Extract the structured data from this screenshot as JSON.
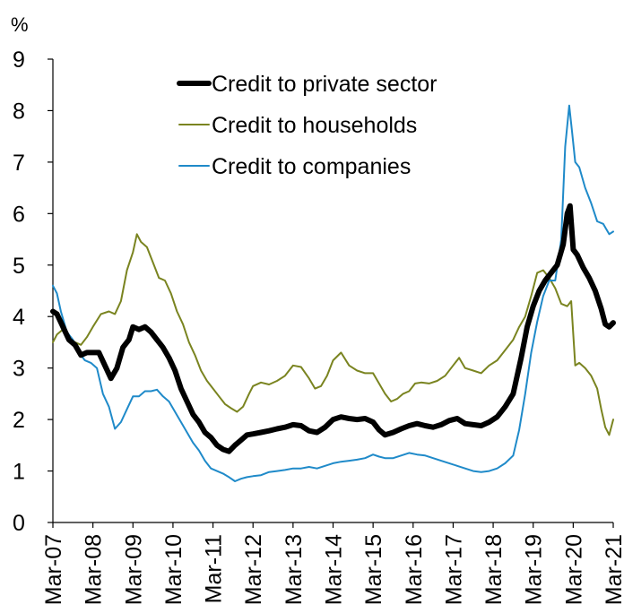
{
  "chart_data": {
    "type": "line",
    "ylabel": "%",
    "ylim": [
      0,
      9
    ],
    "yticks": [
      "0",
      "1",
      "2",
      "3",
      "4",
      "5",
      "6",
      "7",
      "8",
      "9"
    ],
    "xlim": [
      2007.0,
      2021.0
    ],
    "xticks": [
      {
        "label": "Mar-07",
        "x": 2007.0
      },
      {
        "label": "Mar-08",
        "x": 2008.0
      },
      {
        "label": "Mar-09",
        "x": 2009.0
      },
      {
        "label": "Mar-10",
        "x": 2010.0
      },
      {
        "label": "Mar-11",
        "x": 2011.0
      },
      {
        "label": "Mar-12",
        "x": 2012.0
      },
      {
        "label": "Mar-13",
        "x": 2013.0
      },
      {
        "label": "Mar-14",
        "x": 2014.0
      },
      {
        "label": "Mar-15",
        "x": 2015.0
      },
      {
        "label": "Mar-16",
        "x": 2016.0
      },
      {
        "label": "Mar-17",
        "x": 2017.0
      },
      {
        "label": "Mar-18",
        "x": 2018.0
      },
      {
        "label": "Mar-19",
        "x": 2019.0
      },
      {
        "label": "Mar-20",
        "x": 2020.0
      },
      {
        "label": "Mar-21",
        "x": 2021.0
      }
    ],
    "grid": false,
    "legend_position": "top-center",
    "series": [
      {
        "name": "Credit to private sector",
        "color": "#000000",
        "style": "thick",
        "points": [
          [
            2007.0,
            4.1
          ],
          [
            2007.1,
            4.05
          ],
          [
            2007.25,
            3.8
          ],
          [
            2007.4,
            3.55
          ],
          [
            2007.55,
            3.45
          ],
          [
            2007.7,
            3.25
          ],
          [
            2007.85,
            3.3
          ],
          [
            2008.0,
            3.3
          ],
          [
            2008.15,
            3.3
          ],
          [
            2008.3,
            3.05
          ],
          [
            2008.45,
            2.8
          ],
          [
            2008.6,
            3.0
          ],
          [
            2008.75,
            3.4
          ],
          [
            2008.9,
            3.55
          ],
          [
            2009.0,
            3.8
          ],
          [
            2009.15,
            3.75
          ],
          [
            2009.3,
            3.8
          ],
          [
            2009.45,
            3.7
          ],
          [
            2009.6,
            3.55
          ],
          [
            2009.75,
            3.4
          ],
          [
            2009.9,
            3.2
          ],
          [
            2010.05,
            2.95
          ],
          [
            2010.2,
            2.6
          ],
          [
            2010.35,
            2.35
          ],
          [
            2010.5,
            2.1
          ],
          [
            2010.65,
            1.95
          ],
          [
            2010.8,
            1.75
          ],
          [
            2010.95,
            1.65
          ],
          [
            2011.1,
            1.5
          ],
          [
            2011.25,
            1.42
          ],
          [
            2011.4,
            1.38
          ],
          [
            2011.55,
            1.5
          ],
          [
            2011.7,
            1.6
          ],
          [
            2011.85,
            1.7
          ],
          [
            2012.0,
            1.72
          ],
          [
            2012.2,
            1.75
          ],
          [
            2012.4,
            1.78
          ],
          [
            2012.6,
            1.82
          ],
          [
            2012.8,
            1.85
          ],
          [
            2013.0,
            1.9
          ],
          [
            2013.2,
            1.88
          ],
          [
            2013.4,
            1.78
          ],
          [
            2013.6,
            1.75
          ],
          [
            2013.8,
            1.85
          ],
          [
            2014.0,
            2.0
          ],
          [
            2014.2,
            2.05
          ],
          [
            2014.4,
            2.02
          ],
          [
            2014.6,
            2.0
          ],
          [
            2014.8,
            2.02
          ],
          [
            2015.0,
            1.95
          ],
          [
            2015.15,
            1.8
          ],
          [
            2015.3,
            1.7
          ],
          [
            2015.5,
            1.75
          ],
          [
            2015.7,
            1.82
          ],
          [
            2015.9,
            1.88
          ],
          [
            2016.1,
            1.92
          ],
          [
            2016.3,
            1.88
          ],
          [
            2016.5,
            1.85
          ],
          [
            2016.7,
            1.9
          ],
          [
            2016.9,
            1.98
          ],
          [
            2017.1,
            2.02
          ],
          [
            2017.3,
            1.92
          ],
          [
            2017.5,
            1.9
          ],
          [
            2017.7,
            1.88
          ],
          [
            2017.9,
            1.95
          ],
          [
            2018.1,
            2.05
          ],
          [
            2018.3,
            2.25
          ],
          [
            2018.5,
            2.5
          ],
          [
            2018.7,
            3.2
          ],
          [
            2018.85,
            3.8
          ],
          [
            2019.0,
            4.2
          ],
          [
            2019.15,
            4.5
          ],
          [
            2019.3,
            4.7
          ],
          [
            2019.45,
            4.85
          ],
          [
            2019.6,
            5.0
          ],
          [
            2019.75,
            5.4
          ],
          [
            2019.85,
            6.0
          ],
          [
            2019.92,
            6.15
          ],
          [
            2020.0,
            5.3
          ],
          [
            2020.1,
            5.2
          ],
          [
            2020.25,
            4.95
          ],
          [
            2020.4,
            4.75
          ],
          [
            2020.55,
            4.5
          ],
          [
            2020.7,
            4.15
          ],
          [
            2020.8,
            3.85
          ],
          [
            2020.9,
            3.8
          ],
          [
            2021.0,
            3.88
          ]
        ]
      },
      {
        "name": "Credit to households",
        "color": "#7a8420",
        "style": "thin",
        "points": [
          [
            2007.0,
            3.5
          ],
          [
            2007.1,
            3.65
          ],
          [
            2007.25,
            3.75
          ],
          [
            2007.4,
            3.6
          ],
          [
            2007.55,
            3.5
          ],
          [
            2007.7,
            3.45
          ],
          [
            2007.85,
            3.6
          ],
          [
            2008.0,
            3.8
          ],
          [
            2008.2,
            4.05
          ],
          [
            2008.4,
            4.1
          ],
          [
            2008.55,
            4.05
          ],
          [
            2008.7,
            4.3
          ],
          [
            2008.85,
            4.9
          ],
          [
            2009.0,
            5.25
          ],
          [
            2009.1,
            5.6
          ],
          [
            2009.2,
            5.45
          ],
          [
            2009.35,
            5.35
          ],
          [
            2009.5,
            5.05
          ],
          [
            2009.65,
            4.75
          ],
          [
            2009.8,
            4.7
          ],
          [
            2009.95,
            4.45
          ],
          [
            2010.1,
            4.1
          ],
          [
            2010.25,
            3.85
          ],
          [
            2010.4,
            3.5
          ],
          [
            2010.55,
            3.25
          ],
          [
            2010.7,
            2.95
          ],
          [
            2010.85,
            2.75
          ],
          [
            2011.0,
            2.6
          ],
          [
            2011.15,
            2.45
          ],
          [
            2011.3,
            2.3
          ],
          [
            2011.45,
            2.22
          ],
          [
            2011.6,
            2.15
          ],
          [
            2011.75,
            2.25
          ],
          [
            2011.9,
            2.5
          ],
          [
            2012.0,
            2.65
          ],
          [
            2012.2,
            2.72
          ],
          [
            2012.4,
            2.68
          ],
          [
            2012.6,
            2.75
          ],
          [
            2012.8,
            2.85
          ],
          [
            2013.0,
            3.05
          ],
          [
            2013.2,
            3.02
          ],
          [
            2013.4,
            2.8
          ],
          [
            2013.55,
            2.6
          ],
          [
            2013.7,
            2.65
          ],
          [
            2013.85,
            2.85
          ],
          [
            2014.0,
            3.15
          ],
          [
            2014.2,
            3.3
          ],
          [
            2014.4,
            3.05
          ],
          [
            2014.6,
            2.95
          ],
          [
            2014.8,
            2.9
          ],
          [
            2015.0,
            2.9
          ],
          [
            2015.15,
            2.7
          ],
          [
            2015.3,
            2.5
          ],
          [
            2015.45,
            2.35
          ],
          [
            2015.6,
            2.4
          ],
          [
            2015.75,
            2.5
          ],
          [
            2015.9,
            2.55
          ],
          [
            2016.05,
            2.7
          ],
          [
            2016.2,
            2.72
          ],
          [
            2016.4,
            2.7
          ],
          [
            2016.6,
            2.75
          ],
          [
            2016.8,
            2.85
          ],
          [
            2017.0,
            3.05
          ],
          [
            2017.15,
            3.2
          ],
          [
            2017.3,
            3.0
          ],
          [
            2017.5,
            2.95
          ],
          [
            2017.7,
            2.9
          ],
          [
            2017.9,
            3.05
          ],
          [
            2018.1,
            3.15
          ],
          [
            2018.3,
            3.35
          ],
          [
            2018.5,
            3.55
          ],
          [
            2018.65,
            3.8
          ],
          [
            2018.8,
            4.0
          ],
          [
            2018.95,
            4.4
          ],
          [
            2019.1,
            4.85
          ],
          [
            2019.25,
            4.9
          ],
          [
            2019.4,
            4.75
          ],
          [
            2019.55,
            4.55
          ],
          [
            2019.7,
            4.25
          ],
          [
            2019.85,
            4.2
          ],
          [
            2019.95,
            4.3
          ],
          [
            2020.05,
            3.05
          ],
          [
            2020.15,
            3.1
          ],
          [
            2020.3,
            3.0
          ],
          [
            2020.45,
            2.85
          ],
          [
            2020.6,
            2.6
          ],
          [
            2020.7,
            2.2
          ],
          [
            2020.8,
            1.85
          ],
          [
            2020.9,
            1.7
          ],
          [
            2021.0,
            2.0
          ]
        ]
      },
      {
        "name": "Credit to companies",
        "color": "#1f8ac9",
        "style": "thin",
        "points": [
          [
            2007.0,
            4.6
          ],
          [
            2007.1,
            4.45
          ],
          [
            2007.2,
            4.1
          ],
          [
            2007.35,
            3.7
          ],
          [
            2007.5,
            3.55
          ],
          [
            2007.65,
            3.3
          ],
          [
            2007.8,
            3.15
          ],
          [
            2007.95,
            3.1
          ],
          [
            2008.1,
            3.0
          ],
          [
            2008.25,
            2.5
          ],
          [
            2008.4,
            2.25
          ],
          [
            2008.55,
            1.82
          ],
          [
            2008.7,
            1.95
          ],
          [
            2008.85,
            2.2
          ],
          [
            2009.0,
            2.45
          ],
          [
            2009.15,
            2.45
          ],
          [
            2009.3,
            2.55
          ],
          [
            2009.45,
            2.55
          ],
          [
            2009.6,
            2.58
          ],
          [
            2009.75,
            2.45
          ],
          [
            2009.9,
            2.35
          ],
          [
            2010.05,
            2.15
          ],
          [
            2010.2,
            1.95
          ],
          [
            2010.35,
            1.75
          ],
          [
            2010.5,
            1.55
          ],
          [
            2010.65,
            1.4
          ],
          [
            2010.8,
            1.2
          ],
          [
            2010.95,
            1.05
          ],
          [
            2011.1,
            1.0
          ],
          [
            2011.25,
            0.95
          ],
          [
            2011.4,
            0.88
          ],
          [
            2011.55,
            0.8
          ],
          [
            2011.7,
            0.85
          ],
          [
            2011.85,
            0.88
          ],
          [
            2012.0,
            0.9
          ],
          [
            2012.2,
            0.92
          ],
          [
            2012.4,
            0.98
          ],
          [
            2012.6,
            1.0
          ],
          [
            2012.8,
            1.02
          ],
          [
            2013.0,
            1.05
          ],
          [
            2013.2,
            1.05
          ],
          [
            2013.4,
            1.08
          ],
          [
            2013.6,
            1.05
          ],
          [
            2013.8,
            1.1
          ],
          [
            2014.0,
            1.15
          ],
          [
            2014.2,
            1.18
          ],
          [
            2014.4,
            1.2
          ],
          [
            2014.6,
            1.22
          ],
          [
            2014.8,
            1.25
          ],
          [
            2015.0,
            1.32
          ],
          [
            2015.15,
            1.28
          ],
          [
            2015.3,
            1.25
          ],
          [
            2015.5,
            1.25
          ],
          [
            2015.7,
            1.3
          ],
          [
            2015.9,
            1.35
          ],
          [
            2016.1,
            1.32
          ],
          [
            2016.3,
            1.3
          ],
          [
            2016.5,
            1.25
          ],
          [
            2016.7,
            1.2
          ],
          [
            2016.9,
            1.15
          ],
          [
            2017.1,
            1.1
          ],
          [
            2017.3,
            1.05
          ],
          [
            2017.5,
            1.0
          ],
          [
            2017.7,
            0.98
          ],
          [
            2017.9,
            1.0
          ],
          [
            2018.1,
            1.05
          ],
          [
            2018.3,
            1.15
          ],
          [
            2018.5,
            1.3
          ],
          [
            2018.65,
            1.8
          ],
          [
            2018.8,
            2.5
          ],
          [
            2018.95,
            3.3
          ],
          [
            2019.1,
            3.9
          ],
          [
            2019.25,
            4.4
          ],
          [
            2019.4,
            4.7
          ],
          [
            2019.55,
            4.7
          ],
          [
            2019.7,
            5.5
          ],
          [
            2019.8,
            7.3
          ],
          [
            2019.9,
            8.1
          ],
          [
            2019.97,
            7.6
          ],
          [
            2020.05,
            7.0
          ],
          [
            2020.15,
            6.9
          ],
          [
            2020.3,
            6.5
          ],
          [
            2020.45,
            6.2
          ],
          [
            2020.6,
            5.85
          ],
          [
            2020.75,
            5.8
          ],
          [
            2020.9,
            5.6
          ],
          [
            2021.0,
            5.65
          ]
        ]
      }
    ]
  }
}
